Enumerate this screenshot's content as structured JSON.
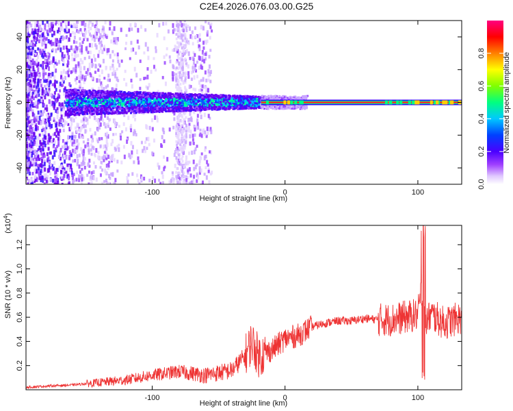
{
  "chart_data": [
    {
      "type": "heatmap",
      "title": "C2E4.2026.076.03.00.G25",
      "xlabel": "Height of straight line (km)",
      "ylabel": "Frequency (Hz)",
      "xlim": [
        -195,
        133
      ],
      "ylim": [
        -50,
        50
      ],
      "xticks": [
        -100,
        0,
        100
      ],
      "yticks": [
        -40,
        -20,
        0,
        20,
        40
      ],
      "colorbar": {
        "label": "Normalized spectral amplitude",
        "range": [
          0,
          1
        ],
        "ticks": [
          0.0,
          0.2,
          0.4,
          0.6,
          0.8
        ]
      },
      "description_values": {
        "strong_line_frequency_hz": 0,
        "strong_line_start_km": -18,
        "noise_region_end_km": -60
      }
    },
    {
      "type": "line",
      "xlabel": "Height of straight line (km)",
      "ylabel": "SNR (10 * v/v)",
      "exponent_label": "(x10",
      "exponent_sup": "4",
      "exponent_close": ")",
      "xlim": [
        -195,
        133
      ],
      "ylim": [
        0,
        1.36
      ],
      "xticks": [
        -100,
        0,
        100
      ],
      "yticks": [
        0.2,
        0.4,
        0.6,
        0.8,
        1.0,
        1.2
      ],
      "color": "#ee3333",
      "series": [
        {
          "name": "SNR",
          "x": [
            -195,
            -180,
            -160,
            -140,
            -120,
            -100,
            -80,
            -60,
            -40,
            -30,
            -25,
            -20,
            -10,
            0,
            10,
            20,
            30,
            40,
            50,
            60,
            70,
            80,
            90,
            100,
            103,
            105,
            110,
            120,
            133
          ],
          "y": [
            0.02,
            0.03,
            0.04,
            0.06,
            0.08,
            0.12,
            0.15,
            0.12,
            0.16,
            0.28,
            0.4,
            0.28,
            0.33,
            0.42,
            0.45,
            0.52,
            0.55,
            0.57,
            0.57,
            0.59,
            0.58,
            0.58,
            0.6,
            0.62,
            0.85,
            0.55,
            0.62,
            0.55,
            0.6
          ]
        }
      ]
    }
  ]
}
